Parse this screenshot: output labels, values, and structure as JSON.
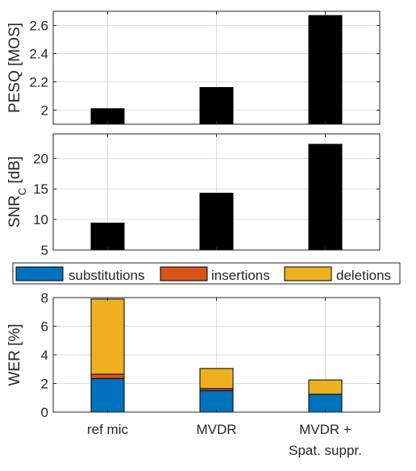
{
  "colors": {
    "bar": "#000000",
    "grid": "#dcdcdc",
    "axis": "#262626",
    "substitutions": "#0072BD",
    "insertions": "#D95319",
    "deletions": "#EDB120"
  },
  "chart_data": [
    {
      "type": "bar",
      "ylabel": "PESQ [MOS]",
      "ylim": [
        1.9,
        2.7
      ],
      "yticks": [
        2,
        2.2,
        2.4,
        2.6
      ],
      "ytick_labels": [
        "2",
        "2.2",
        "2.4",
        "2.6"
      ],
      "categories": [
        "ref mic",
        "MVDR",
        "MVDR + Spat. suppr."
      ],
      "values": [
        2.01,
        2.16,
        2.67
      ],
      "grid": true
    },
    {
      "type": "bar",
      "ylabel": "SNRC [dB]",
      "ylabel_main": "SNR",
      "ylabel_sub": "C",
      "ylabel_unit": " [dB]",
      "ylim": [
        5,
        24
      ],
      "yticks": [
        5,
        10,
        15,
        20
      ],
      "ytick_labels": [
        "5",
        "10",
        "15",
        "20"
      ],
      "categories": [
        "ref mic",
        "MVDR",
        "MVDR + Spat. suppr."
      ],
      "values": [
        9.4,
        14.3,
        22.3
      ],
      "grid": true
    },
    {
      "type": "bar",
      "stacked": true,
      "ylabel": "WER [%]",
      "ylim": [
        0,
        8
      ],
      "yticks": [
        0,
        2,
        4,
        6,
        8
      ],
      "ytick_labels": [
        "0",
        "2",
        "4",
        "6",
        "8"
      ],
      "categories": [
        "ref mic",
        "MVDR",
        "MVDR + Spat. suppr."
      ],
      "xtick_lines": [
        [
          "ref mic"
        ],
        [
          "MVDR"
        ],
        [
          "MVDR +",
          "Spat. suppr."
        ]
      ],
      "series": [
        {
          "name": "substitutions",
          "values": [
            2.35,
            1.5,
            1.25
          ]
        },
        {
          "name": "insertions",
          "values": [
            0.3,
            0.15,
            0.0
          ]
        },
        {
          "name": "deletions",
          "values": [
            5.25,
            1.4,
            1.0
          ]
        }
      ],
      "legend": "top",
      "grid": true
    }
  ]
}
